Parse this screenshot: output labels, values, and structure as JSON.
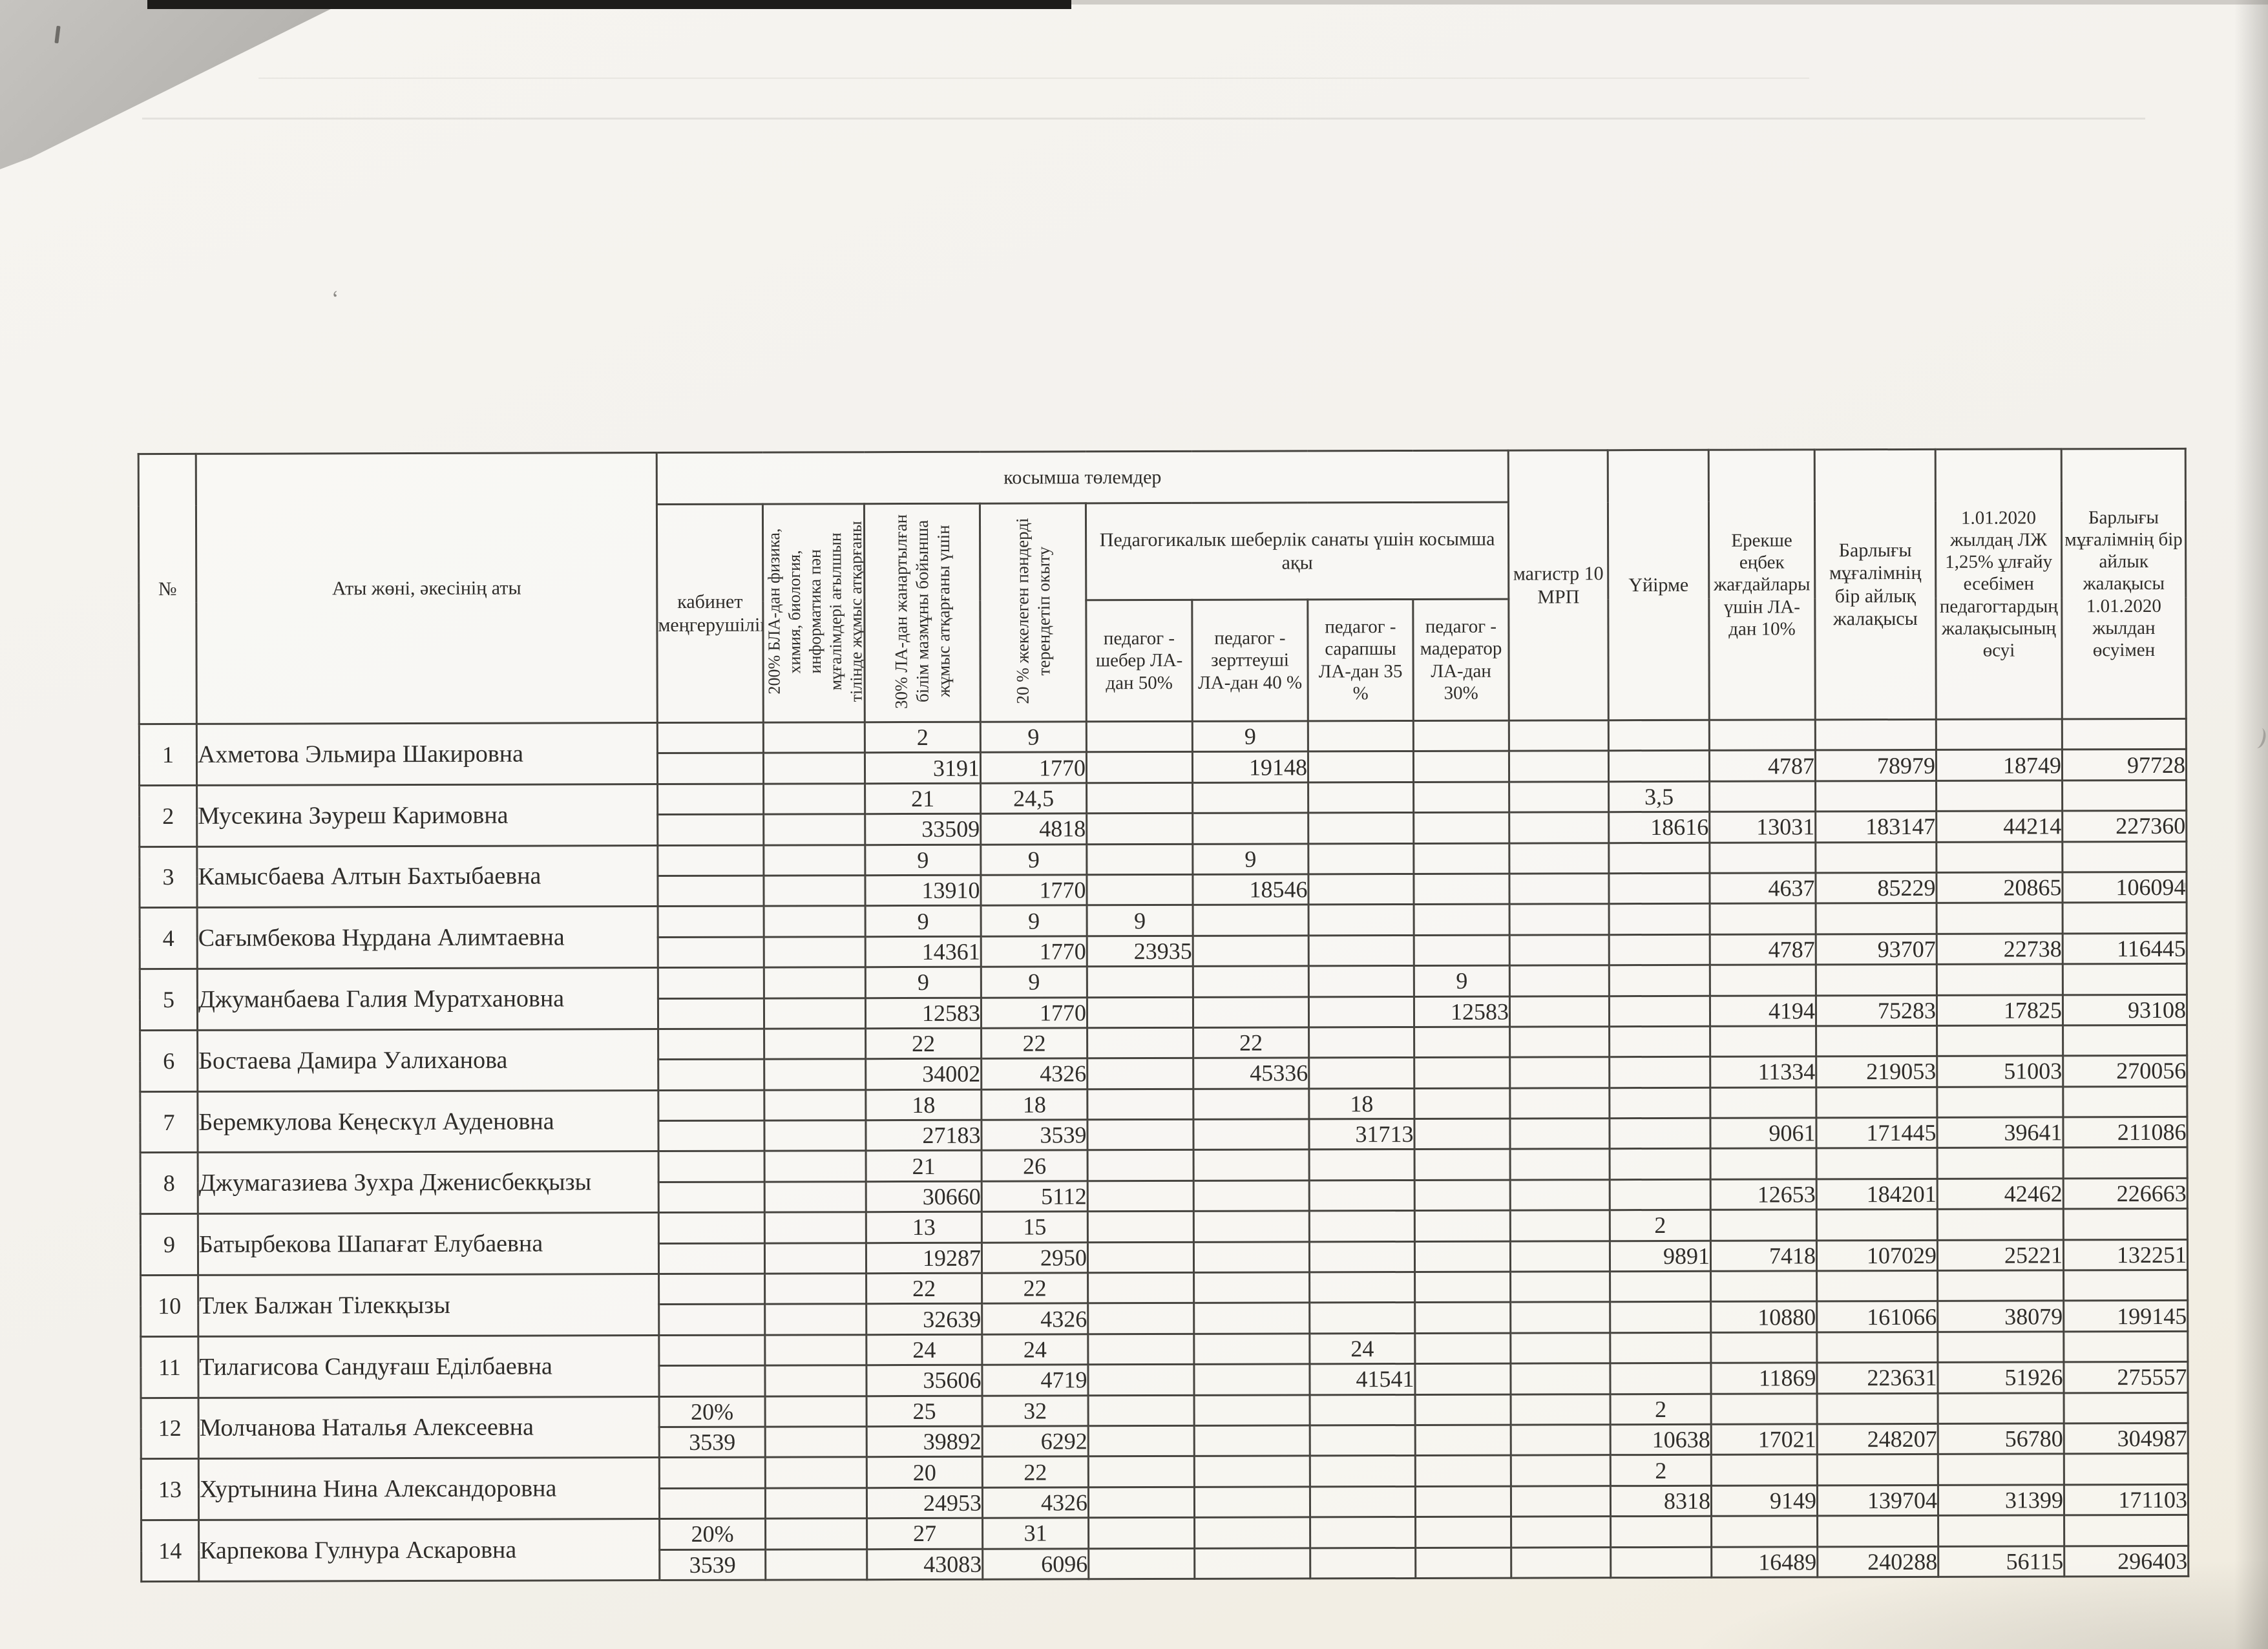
{
  "table": {
    "group_header": "косымша төлемдер",
    "pedagog_group": "Педагогикалык шеберлік санаты үшін косымша ақы",
    "columns": {
      "num": "№",
      "name": "Аты жөні, әкесінің аты",
      "kab": "кабинет меңгерушілігі",
      "bla200": "200% БЛА-дан физика, химия, биология, информатика пән мұғалімдері ағылшын тілінде жұмыс атқарғаны",
      "la30": "30% ЛА-дан жанартылған білім мазмұны бойынша жұмыс атқарғаны үшін",
      "pct20": "20 % жекелеген пәндерді терендетіп окыту",
      "sheber": "педагог - шебер ЛА- дан 50%",
      "zertteushi": "педагог - зерттеуші ЛА-дан 40 %",
      "sarapshy": "педагог - сарапшы ЛА-дан 35 %",
      "maderator": "педагог - мадератор ЛА-дан 30%",
      "magistr": "магистр 10 МРП",
      "uiirme": "Үйірме",
      "erekshe": "Ерекше еңбек жағдайлары үшін ЛА-дан 10%",
      "barlygy": "Барлығы мұғалімнің бір айлық жалақысы",
      "osu": "1.01.2020 жылдаң ЛЖ 1,25% ұлғайу есебімен педагогтардың жалақысының өсуі",
      "barlygy_osu": "Барлығы мұғалімнің бір айлык жалақысы 1.01.2020 жылдан өсуімен"
    },
    "rows": [
      {
        "num": "1",
        "name": "Ахметова Эльмира Шакировна",
        "top": {
          "la30": "2",
          "pct20": "9",
          "zertteushi": "9"
        },
        "bottom": {
          "la30": "3191",
          "pct20": "1770",
          "zertteushi": "19148",
          "erekshe": "4787",
          "barlygy": "78979",
          "osu": "18749",
          "barlygy_osu": "97728"
        }
      },
      {
        "num": "2",
        "name": "Мусекина Зәуреш Каримовна",
        "top": {
          "la30": "21",
          "pct20": "24,5",
          "uiirme": "3,5"
        },
        "bottom": {
          "la30": "33509",
          "pct20": "4818",
          "uiirme": "18616",
          "erekshe": "13031",
          "barlygy": "183147",
          "osu": "44214",
          "barlygy_osu": "227360"
        }
      },
      {
        "num": "3",
        "name": "Камысбаева Алтын Бахтыбаевна",
        "top": {
          "la30": "9",
          "pct20": "9",
          "zertteushi": "9"
        },
        "bottom": {
          "la30": "13910",
          "pct20": "1770",
          "zertteushi": "18546",
          "erekshe": "4637",
          "barlygy": "85229",
          "osu": "20865",
          "barlygy_osu": "106094"
        }
      },
      {
        "num": "4",
        "name": "Сағымбекова Нұрдана Алимтаевна",
        "top": {
          "la30": "9",
          "pct20": "9",
          "sheber": "9"
        },
        "bottom": {
          "la30": "14361",
          "pct20": "1770",
          "sheber": "23935",
          "erekshe": "4787",
          "barlygy": "93707",
          "osu": "22738",
          "barlygy_osu": "116445"
        }
      },
      {
        "num": "5",
        "name": "Джуманбаева Галия Муратхановна",
        "top": {
          "la30": "9",
          "pct20": "9",
          "maderator": "9"
        },
        "bottom": {
          "la30": "12583",
          "pct20": "1770",
          "maderator": "12583",
          "erekshe": "4194",
          "barlygy": "75283",
          "osu": "17825",
          "barlygy_osu": "93108"
        }
      },
      {
        "num": "6",
        "name": "Бостаева Дамира Уалиханова",
        "top": {
          "la30": "22",
          "pct20": "22",
          "zertteushi": "22"
        },
        "bottom": {
          "la30": "34002",
          "pct20": "4326",
          "zertteushi": "45336",
          "erekshe": "11334",
          "barlygy": "219053",
          "osu": "51003",
          "barlygy_osu": "270056"
        }
      },
      {
        "num": "7",
        "name": "Беремкулова Кеңескүл Ауденовна",
        "top": {
          "la30": "18",
          "pct20": "18",
          "sarapshy": "18"
        },
        "bottom": {
          "la30": "27183",
          "pct20": "3539",
          "sarapshy": "31713",
          "erekshe": "9061",
          "barlygy": "171445",
          "osu": "39641",
          "barlygy_osu": "211086"
        }
      },
      {
        "num": "8",
        "name": "Джумагазиева Зухра Дженисбекқызы",
        "top": {
          "la30": "21",
          "pct20": "26"
        },
        "bottom": {
          "la30": "30660",
          "pct20": "5112",
          "erekshe": "12653",
          "barlygy": "184201",
          "osu": "42462",
          "barlygy_osu": "226663"
        }
      },
      {
        "num": "9",
        "name": "Батырбекова Шапағат Елубаевна",
        "top": {
          "la30": "13",
          "pct20": "15",
          "uiirme": "2"
        },
        "bottom": {
          "la30": "19287",
          "pct20": "2950",
          "uiirme": "9891",
          "erekshe": "7418",
          "barlygy": "107029",
          "osu": "25221",
          "barlygy_osu": "132251"
        }
      },
      {
        "num": "10",
        "name": "Тлек Балжан Тілекқызы",
        "top": {
          "la30": "22",
          "pct20": "22"
        },
        "bottom": {
          "la30": "32639",
          "pct20": "4326",
          "erekshe": "10880",
          "barlygy": "161066",
          "osu": "38079",
          "barlygy_osu": "199145"
        }
      },
      {
        "num": "11",
        "name": "Тилагисова Сандуғаш Еділбаевна",
        "top": {
          "la30": "24",
          "pct20": "24",
          "sarapshy": "24"
        },
        "bottom": {
          "la30": "35606",
          "pct20": "4719",
          "sarapshy": "41541",
          "erekshe": "11869",
          "barlygy": "223631",
          "osu": "51926",
          "barlygy_osu": "275557"
        }
      },
      {
        "num": "12",
        "name": "Молчанова Наталья Алексеевна",
        "top": {
          "kab": "20%",
          "la30": "25",
          "pct20": "32",
          "uiirme": "2"
        },
        "bottom": {
          "kab": "3539",
          "la30": "39892",
          "pct20": "6292",
          "uiirme": "10638",
          "erekshe": "17021",
          "barlygy": "248207",
          "osu": "56780",
          "barlygy_osu": "304987"
        }
      },
      {
        "num": "13",
        "name": "Хуртынина Нина Александоровна",
        "top": {
          "la30": "20",
          "pct20": "22",
          "uiirme": "2"
        },
        "bottom": {
          "la30": "24953",
          "pct20": "4326",
          "uiirme": "8318",
          "erekshe": "9149",
          "barlygy": "139704",
          "osu": "31399",
          "barlygy_osu": "171103"
        }
      },
      {
        "num": "14",
        "name": "Карпекова Гулнура Аскаровна",
        "top": {
          "kab": "20%",
          "la30": "27",
          "pct20": "31"
        },
        "bottom": {
          "kab": "3539",
          "la30": "43083",
          "pct20": "6096",
          "erekshe": "16489",
          "barlygy": "240288",
          "osu": "56115",
          "barlygy_osu": "296403"
        }
      }
    ]
  }
}
